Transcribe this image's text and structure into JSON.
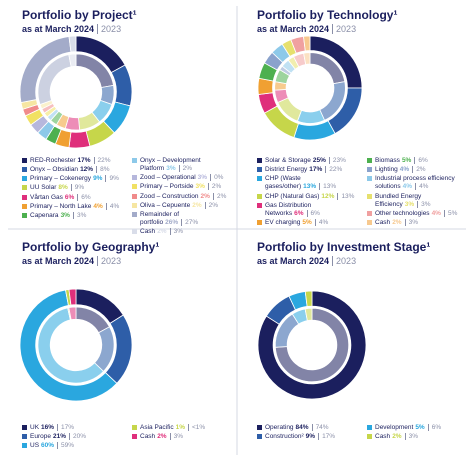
{
  "chart_data": [
    {
      "type": "donut",
      "title": "Portfolio by Project¹",
      "subtitle": "as at March 2024",
      "subtitle_compare": "2023",
      "categories": [
        "RED-Rochester",
        "Onyx – Obsidian",
        "Primary – Cokenergy",
        "UU Solar",
        "Vårtan Gas",
        "Primary – North Lake",
        "Capenara",
        "Onyx – Development Platform",
        "Zood – Operational",
        "Primary – Portside",
        "Zood – Construction",
        "Oliva – Cepuente",
        "Remainder of portfolio",
        "Cash"
      ],
      "colors": [
        "#1b1f5e",
        "#2e5ea8",
        "#2aa7df",
        "#c6d64a",
        "#df2f7b",
        "#f0a032",
        "#4db04f",
        "#8dc9e9",
        "#b6b7dc",
        "#f1e163",
        "#f08b8b",
        "#f6e6a2",
        "#a3abc9",
        "#d9dde9"
      ],
      "series": [
        {
          "values": [
            17,
            12,
            9,
            8,
            6,
            4,
            3,
            3,
            3,
            3,
            2,
            2,
            26,
            2
          ],
          "value_labels": [
            "17%",
            "12%",
            "9%",
            "8%",
            "6%",
            "4%",
            "3%",
            "3%",
            "3%",
            "3%",
            "2%",
            "2%",
            "26%",
            "2%"
          ]
        },
        {
          "values": [
            22,
            8,
            9,
            9,
            6,
            4,
            3,
            2,
            0,
            2,
            2,
            2,
            27,
            3
          ],
          "value_labels": [
            "22%",
            "8%",
            "9%",
            "9%",
            "6%",
            "4%",
            "3%",
            "2%",
            "0%",
            "2%",
            "2%",
            "2%",
            "27%",
            "3%"
          ]
        }
      ]
    },
    {
      "type": "donut",
      "title": "Portfolio by Technology¹",
      "subtitle": "as at March 2024",
      "subtitle_compare": "2023",
      "categories": [
        "Solar & Storage",
        "District Energy",
        "CHP (Waste gases/other)",
        "CHP (Natural Gas)",
        "Gas Distribution Networks",
        "EV charging",
        "Biomass",
        "Lighting",
        "Industrial process efficiency solutions",
        "Bundled Energy Efficiency",
        "Other technologies",
        "Cash"
      ],
      "colors": [
        "#1b1f5e",
        "#2e5ea8",
        "#2aa7df",
        "#c6d64a",
        "#df2f7b",
        "#f0a032",
        "#4db04f",
        "#8aa2cc",
        "#8dc9e9",
        "#e6e06e",
        "#f0a0a0",
        "#f7c98f"
      ],
      "series": [
        {
          "values": [
            25,
            17,
            13,
            12,
            6,
            5,
            5,
            4,
            4,
            3,
            4,
            2
          ],
          "value_labels": [
            "25%",
            "17%",
            "13%",
            "12%",
            "6%",
            "5%",
            "5%",
            "4%",
            "4%",
            "3%",
            "4%",
            "2%"
          ]
        },
        {
          "values": [
            23,
            22,
            13,
            13,
            6,
            4,
            6,
            2,
            4,
            3,
            5,
            3
          ],
          "value_labels": [
            "23%",
            "22%",
            "13%",
            "13%",
            "6%",
            "4%",
            "6%",
            "2%",
            "4%",
            "3%",
            "5%",
            "3%"
          ]
        }
      ]
    },
    {
      "type": "donut",
      "title": "Portfolio by Geography¹",
      "subtitle": "as at March 2024",
      "subtitle_compare": "2023",
      "categories": [
        "UK",
        "Europe",
        "US",
        "Asia Pacific",
        "Cash"
      ],
      "colors": [
        "#1b1f5e",
        "#2e5ea8",
        "#2aa7df",
        "#c6d64a",
        "#df2f7b"
      ],
      "series": [
        {
          "values": [
            16,
            21,
            60,
            1,
            2
          ],
          "value_labels": [
            "16%",
            "21%",
            "60%",
            "1%",
            "2%"
          ]
        },
        {
          "values": [
            17,
            20,
            59,
            0.5,
            3
          ],
          "value_labels": [
            "17%",
            "20%",
            "59%",
            "<1%",
            "3%"
          ]
        }
      ]
    },
    {
      "type": "donut",
      "title": "Portfolio by Investment Stage¹",
      "subtitle": "as at March 2024",
      "subtitle_compare": "2023",
      "categories": [
        "Operating",
        "Construction²",
        "Development",
        "Cash"
      ],
      "colors": [
        "#1b1f5e",
        "#2e5ea8",
        "#2aa7df",
        "#c6d64a"
      ],
      "series": [
        {
          "values": [
            84,
            9,
            5,
            2
          ],
          "value_labels": [
            "84%",
            "9%",
            "5%",
            "2%"
          ]
        },
        {
          "values": [
            74,
            17,
            6,
            3
          ],
          "value_labels": [
            "74%",
            "17%",
            "6%",
            "3%"
          ]
        }
      ]
    }
  ]
}
